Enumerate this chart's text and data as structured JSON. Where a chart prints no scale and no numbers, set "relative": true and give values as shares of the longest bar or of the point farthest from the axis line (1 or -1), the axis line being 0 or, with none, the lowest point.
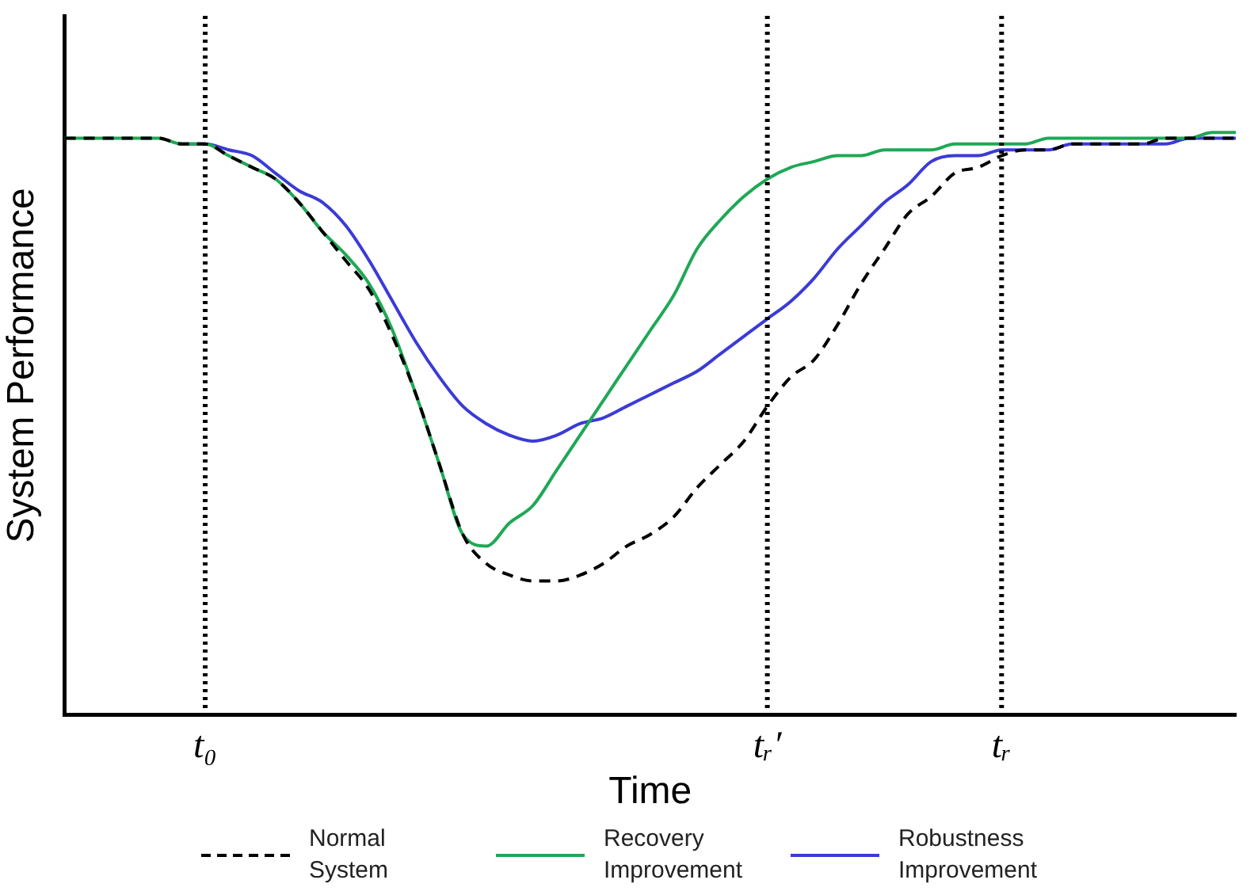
{
  "chart_data": {
    "type": "line",
    "relative": true,
    "xlabel": "Time",
    "ylabel": "System Performance",
    "categories": [
      null,
      null,
      null,
      null,
      null,
      null,
      "t₀",
      null,
      null,
      null,
      null,
      null,
      null,
      null,
      null,
      null,
      null,
      null,
      null,
      null,
      null,
      null,
      null,
      null,
      null,
      null,
      null,
      null,
      null,
      null,
      "tᵣ′",
      null,
      null,
      null,
      null,
      null,
      null,
      null,
      null,
      null,
      "tᵣ",
      null,
      null,
      null,
      null,
      null,
      null,
      null,
      null,
      null,
      null
    ],
    "ref_lines": [
      {
        "axis": "x",
        "value": "t₀",
        "line_style": "dotted",
        "color": "#000000"
      },
      {
        "axis": "x",
        "value": "tᵣ′",
        "line_style": "dotted",
        "color": "#000000"
      },
      {
        "axis": "x",
        "value": "tᵣ",
        "line_style": "dotted",
        "color": "#000000"
      }
    ],
    "legend": "bottom",
    "grid": false,
    "marker": "none",
    "series": [
      {
        "name": "Normal System",
        "color": "#000000",
        "line_style": "dashed",
        "values": [
          0.99,
          0.99,
          0.99,
          0.99,
          0.99,
          0.98,
          0.98,
          0.96,
          0.94,
          0.92,
          0.88,
          0.83,
          0.78,
          0.73,
          0.65,
          0.55,
          0.43,
          0.31,
          0.26,
          0.24,
          0.23,
          0.23,
          0.24,
          0.26,
          0.29,
          0.31,
          0.34,
          0.39,
          0.43,
          0.47,
          0.53,
          0.58,
          0.61,
          0.67,
          0.74,
          0.8,
          0.86,
          0.89,
          0.93,
          0.94,
          0.96,
          0.97,
          0.97,
          0.98,
          0.98,
          0.98,
          0.98,
          0.99,
          0.99,
          0.99,
          0.99
        ]
      },
      {
        "name": "Recovery Improvement",
        "color": "#1fa855",
        "line_style": "solid",
        "values": [
          0.99,
          0.99,
          0.99,
          0.99,
          0.99,
          0.98,
          0.98,
          0.96,
          0.94,
          0.92,
          0.88,
          0.83,
          0.79,
          0.74,
          0.66,
          0.55,
          0.43,
          0.31,
          0.29,
          0.33,
          0.36,
          0.42,
          0.48,
          0.54,
          0.6,
          0.66,
          0.72,
          0.8,
          0.85,
          0.89,
          0.92,
          0.94,
          0.95,
          0.96,
          0.96,
          0.97,
          0.97,
          0.97,
          0.98,
          0.98,
          0.98,
          0.98,
          0.99,
          0.99,
          0.99,
          0.99,
          0.99,
          0.99,
          0.99,
          1.0,
          1.0
        ]
      },
      {
        "name": "Robustness Improvement",
        "color": "#3b3bd6",
        "line_style": "solid",
        "values": [
          null,
          null,
          null,
          null,
          null,
          0.98,
          0.98,
          0.97,
          0.96,
          0.93,
          0.9,
          0.88,
          0.84,
          0.78,
          0.71,
          0.64,
          0.58,
          0.53,
          0.5,
          0.48,
          0.47,
          0.48,
          0.5,
          0.51,
          0.53,
          0.55,
          0.57,
          0.59,
          0.62,
          0.65,
          0.68,
          0.71,
          0.75,
          0.8,
          0.84,
          0.88,
          0.91,
          0.95,
          0.96,
          0.96,
          0.97,
          0.97,
          0.97,
          0.98,
          0.98,
          0.98,
          0.98,
          0.98,
          0.99,
          0.99,
          0.99
        ]
      }
    ]
  }
}
